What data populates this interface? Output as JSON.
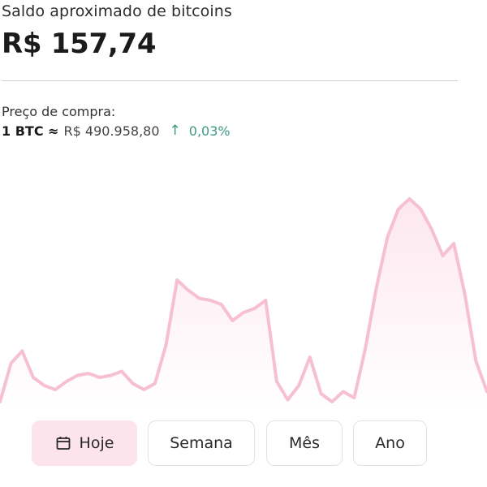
{
  "header": {
    "title": "Saldo aproximado de bitcoins",
    "balance": "R$ 157,74"
  },
  "price": {
    "label": "Preço de compra:",
    "unit": "1 BTC ≈",
    "value": "R$ 490.958,80",
    "change": "0,03%",
    "change_direction": "up",
    "change_color": "#3e9a83"
  },
  "chart": {
    "line_color": "#f6bfd3",
    "fill_color": "#fde7ef",
    "points": [
      0.0,
      0.19,
      0.25,
      0.12,
      0.08,
      0.06,
      0.1,
      0.13,
      0.14,
      0.12,
      0.13,
      0.15,
      0.09,
      0.06,
      0.09,
      0.28,
      0.6,
      0.55,
      0.51,
      0.5,
      0.48,
      0.4,
      0.44,
      0.46,
      0.5,
      0.1,
      0.01,
      0.08,
      0.22,
      0.04,
      0.0,
      0.05,
      0.02,
      0.26,
      0.56,
      0.81,
      0.95,
      1.0,
      0.95,
      0.85,
      0.72,
      0.78,
      0.53,
      0.2,
      0.05
    ]
  },
  "range_tabs": [
    {
      "label": "Hoje",
      "active": true,
      "icon": "calendar-icon"
    },
    {
      "label": "Semana",
      "active": false
    },
    {
      "label": "Mês",
      "active": false
    },
    {
      "label": "Ano",
      "active": false
    }
  ]
}
